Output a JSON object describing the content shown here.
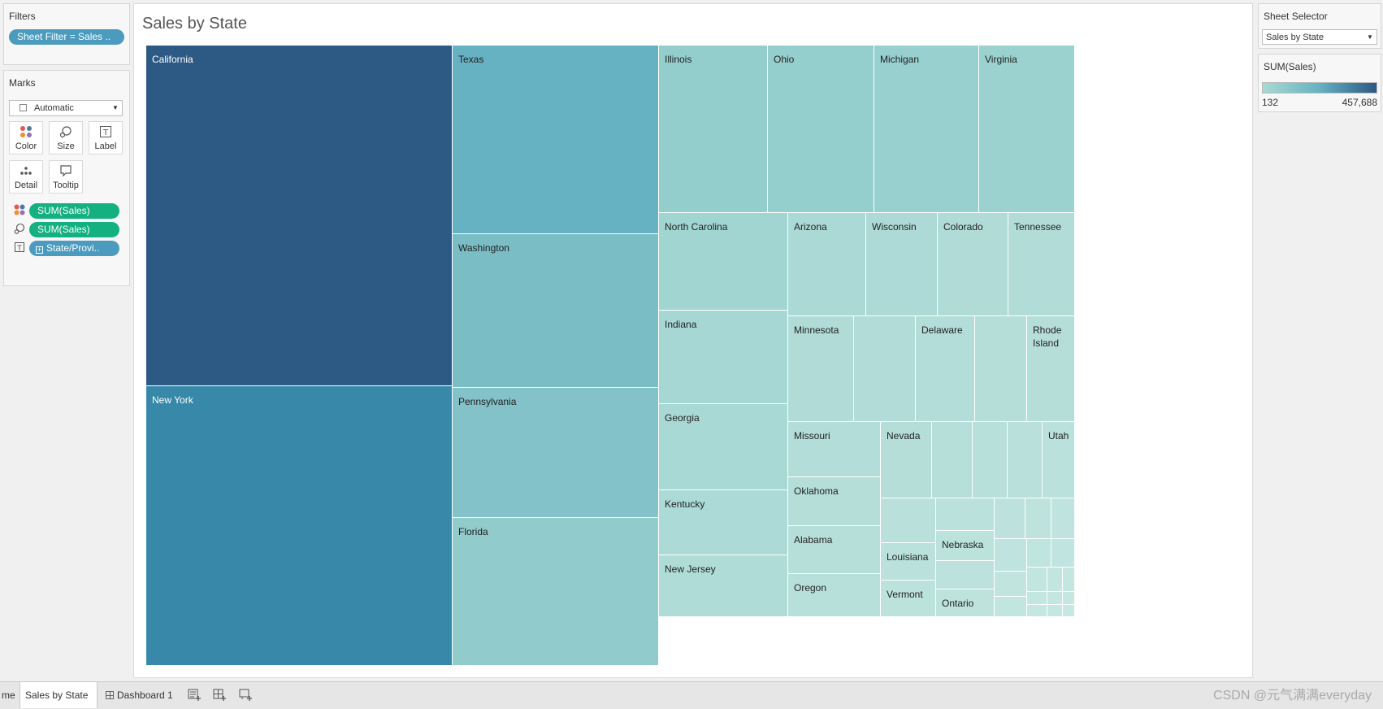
{
  "filters": {
    "title": "Filters",
    "pill": "Sheet Filter = Sales .."
  },
  "marks": {
    "title": "Marks",
    "mark_type": "Automatic",
    "buttons": {
      "color": "Color",
      "size": "Size",
      "label": "Label",
      "detail": "Detail",
      "tooltip": "Tooltip"
    },
    "fields": [
      "SUM(Sales)",
      "SUM(Sales)",
      "State/Provi.."
    ]
  },
  "viz": {
    "title": "Sales by State"
  },
  "sheet_selector": {
    "title": "Sheet Selector",
    "value": "Sales by State"
  },
  "legend": {
    "title": "SUM(Sales)",
    "min": "132",
    "max": "457,688",
    "color_min": "#a8dad3",
    "color_max": "#2c5985"
  },
  "tabs": {
    "partial": "me",
    "active": "Sales by State",
    "dashboard": "Dashboard 1"
  },
  "watermark": "CSDN @元气满满everyday",
  "tiles": [
    {
      "label": "California",
      "color": "#2d5a85",
      "dark": true
    },
    {
      "label": "New York",
      "color": "#3889a9",
      "dark": true
    },
    {
      "label": "Texas",
      "color": "#66b1c2"
    },
    {
      "label": "Washington",
      "color": "#7abdc5"
    },
    {
      "label": "Pennsylvania",
      "color": "#82c2c8"
    },
    {
      "label": "Florida",
      "color": "#91cbcb"
    },
    {
      "label": "Illinois",
      "color": "#93cecd"
    },
    {
      "label": "Ohio",
      "color": "#95cfcd"
    },
    {
      "label": "Michigan",
      "color": "#98d0cf"
    },
    {
      "label": "Virginia",
      "color": "#9bd1cf"
    },
    {
      "label": "North Carolina",
      "color": "#a1d5d2"
    },
    {
      "label": "Indiana",
      "color": "#a6d7d4"
    },
    {
      "label": "Georgia",
      "color": "#a9d9d5"
    },
    {
      "label": "Kentucky",
      "color": "#acdad6"
    },
    {
      "label": "New Jersey",
      "color": "#afdcd7"
    },
    {
      "label": "Arizona",
      "color": "#abd9d5"
    },
    {
      "label": "Wisconsin",
      "color": "#add9d6"
    },
    {
      "label": "Colorado",
      "color": "#b0dbd7"
    },
    {
      "label": "Tennessee",
      "color": "#b2dcd8"
    },
    {
      "label": "Minnesota",
      "color": "#b0dbd7"
    },
    {
      "label": "",
      "color": "#b2dcd8"
    },
    {
      "label": "Delaware",
      "color": "#b3ddd8"
    },
    {
      "label": "",
      "color": "#b5ded9"
    },
    {
      "label": "Rhode Island",
      "color": "#b6ded9"
    },
    {
      "label": "Missouri",
      "color": "#b3ddd8"
    },
    {
      "label": "Oklahoma",
      "color": "#b5ded9"
    },
    {
      "label": "Alabama",
      "color": "#b6dfda"
    },
    {
      "label": "Oregon",
      "color": "#b8e0da"
    },
    {
      "label": "Nevada",
      "color": "#b5ded9"
    },
    {
      "label": "",
      "color": "#b7dfda"
    },
    {
      "label": "",
      "color": "#b8e0da"
    },
    {
      "label": "",
      "color": "#b9e0db"
    },
    {
      "label": "Utah",
      "color": "#bae1db"
    },
    {
      "label": "",
      "color": "#b9e0db"
    },
    {
      "label": "Louisiana",
      "color": "#bae1db"
    },
    {
      "label": "Vermont",
      "color": "#bce2dc"
    },
    {
      "label": "",
      "color": "#bbe1dc"
    },
    {
      "label": "Nebraska",
      "color": "#bce2dc"
    },
    {
      "label": "",
      "color": "#bde2dd"
    },
    {
      "label": "Ontario",
      "color": "#bee3dd"
    },
    {
      "label": "",
      "color": "#bde2dd"
    },
    {
      "label": "",
      "color": "#bee3dd"
    },
    {
      "label": "",
      "color": "#bfe3de"
    },
    {
      "label": "",
      "color": "#bfe3de"
    },
    {
      "label": "",
      "color": "#c0e4de"
    },
    {
      "label": "",
      "color": "#c0e4df"
    },
    {
      "label": "",
      "color": "#c1e4df"
    },
    {
      "label": "",
      "color": "#c1e5df"
    },
    {
      "label": "",
      "color": "#c2e5e0"
    },
    {
      "label": "",
      "color": "#c2e5e0"
    },
    {
      "label": "",
      "color": "#c3e6e0"
    },
    {
      "label": "",
      "color": "#c3e6e1"
    },
    {
      "label": "",
      "color": "#c4e6e1"
    },
    {
      "label": "",
      "color": "#c4e7e1"
    },
    {
      "label": "",
      "color": "#c5e7e2"
    },
    {
      "label": "",
      "color": "#c5e7e2"
    },
    {
      "label": "",
      "color": "#c6e8e2"
    }
  ]
}
